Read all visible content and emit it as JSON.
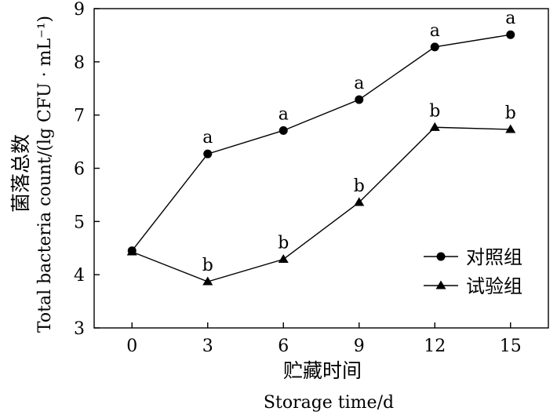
{
  "chart_data": {
    "type": "line",
    "xlabel_cn": "贮藏时间",
    "xlabel_en": "Storage time/d",
    "ylabel_cn": "菌落总数",
    "ylabel_en": "Total bacteria count/(lg CFU · mL⁻¹)",
    "x": [
      0,
      3,
      6,
      9,
      12,
      15
    ],
    "x_tick_labels": [
      "0",
      "3",
      "6",
      "9",
      "12",
      "15"
    ],
    "y_tick_labels": [
      "3",
      "4",
      "5",
      "6",
      "7",
      "8",
      "9"
    ],
    "xlim": [
      -1.5,
      16.5
    ],
    "ylim": [
      3,
      9
    ],
    "grid": false,
    "legend_position": "right-center",
    "series": [
      {
        "name": "对照组",
        "marker": "circle",
        "values": [
          4.45,
          6.27,
          6.71,
          7.29,
          8.28,
          8.51
        ],
        "labels": [
          "",
          "a",
          "a",
          "a",
          "a",
          "a"
        ]
      },
      {
        "name": "试验组",
        "marker": "triangle",
        "values": [
          4.43,
          3.87,
          4.29,
          5.36,
          6.77,
          6.73
        ],
        "labels": [
          "",
          "b",
          "b",
          "b",
          "b",
          "b"
        ]
      }
    ]
  }
}
